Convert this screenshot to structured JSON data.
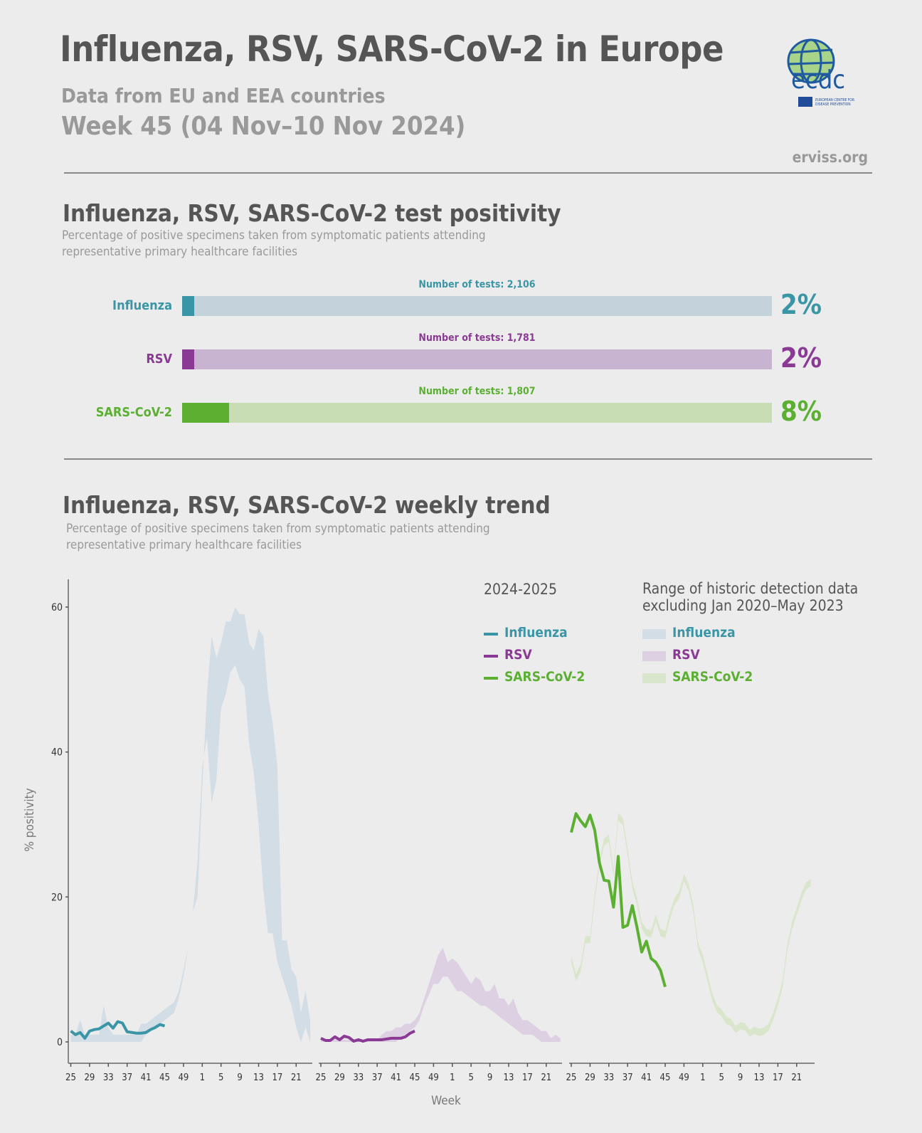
{
  "header": {
    "title": "Influenza, RSV, SARS-CoV-2 in Europe",
    "subtitle": "Data from EU and EEA countries",
    "week": "Week 45 (04 Nov–10 Nov 2024)",
    "site": "erviss.org",
    "logo_text": "ecdc",
    "logo_caption": "EUROPEAN CENTRE FOR DISEASE PREVENTION AND CONTROL"
  },
  "colors": {
    "influenza": "#3a96a6",
    "influenza_light": "#c3d2db",
    "influenza_range": "#d2dde5",
    "rsv": "#8a3a94",
    "rsv_light": "#c8b3d1",
    "rsv_range": "#ddd0e3",
    "sars": "#5bb031",
    "sars_light": "#c8ddb3",
    "sars_range": "#d9e6cb"
  },
  "positivity": {
    "title": "Influenza, RSV, SARS-CoV-2 test positivity",
    "description": "Percentage of positive specimens taken from symptomatic patients attending representative primary healthcare facilities",
    "bars": [
      {
        "label": "Influenza",
        "tests_label": "Number of tests: 2,106",
        "percent": 2,
        "percent_label": "2%"
      },
      {
        "label": "RSV",
        "tests_label": "Number of tests: 1,781",
        "percent": 2,
        "percent_label": "2%"
      },
      {
        "label": "SARS-CoV-2",
        "tests_label": "Number of tests: 1,807",
        "percent": 8,
        "percent_label": "8%"
      }
    ]
  },
  "trend": {
    "title": "Influenza, RSV, SARS-CoV-2 weekly trend",
    "description": "Percentage of positive specimens taken from symptomatic patients attending representative primary healthcare facilities",
    "legend": {
      "season_title": "2024-2025",
      "range_title_1": "Range of historic detection data",
      "range_title_2": "excluding Jan 2020–May 2023",
      "items": [
        "Influenza",
        "RSV",
        "SARS-CoV-2"
      ]
    }
  },
  "chart_data": {
    "type": "line",
    "ylabel": "% positivity",
    "xlabel": "Week",
    "ylim": [
      0,
      60
    ],
    "yticks": [
      0,
      20,
      40,
      60
    ],
    "weeks": [
      25,
      26,
      27,
      28,
      29,
      30,
      31,
      32,
      33,
      34,
      35,
      36,
      37,
      38,
      39,
      40,
      41,
      42,
      43,
      44,
      45,
      46,
      47,
      48,
      49,
      50,
      51,
      52,
      1,
      2,
      3,
      4,
      5,
      6,
      7,
      8,
      9,
      10,
      11,
      12,
      13,
      14,
      15,
      16,
      17,
      18,
      19,
      20,
      21,
      22,
      23,
      24
    ],
    "xtick_labels": [
      "25",
      "29",
      "33",
      "37",
      "41",
      "45",
      "49",
      "1",
      "5",
      "9",
      "13",
      "17",
      "21"
    ],
    "panels": [
      {
        "name": "Influenza",
        "season_2024_2025": [
          1.5,
          1.0,
          1.3,
          0.5,
          1.5,
          1.7,
          1.8,
          2.2,
          2.6,
          1.9,
          2.8,
          2.6,
          1.4,
          1.3,
          1.2,
          1.2,
          1.3,
          1.7,
          2.0,
          2.4,
          2.2
        ],
        "historic_lower": [
          0,
          0,
          0,
          0,
          0,
          0,
          0,
          0,
          0,
          0,
          0,
          0,
          0,
          0,
          0,
          0,
          1,
          1.5,
          2,
          2.5,
          3,
          3.5,
          4,
          6,
          9,
          13,
          18,
          25,
          38,
          42,
          33,
          36,
          46,
          48,
          51,
          52,
          50,
          49,
          41,
          37,
          30,
          21,
          15,
          15,
          11,
          9,
          7,
          5,
          2,
          0,
          2,
          0
        ],
        "historic_upper": [
          1,
          1,
          3,
          1,
          1,
          1,
          1,
          5,
          2,
          1,
          1,
          1,
          1,
          1,
          1,
          2.5,
          2.5,
          3,
          3.5,
          4,
          4.5,
          5,
          5.5,
          7,
          10,
          13,
          18,
          20,
          35,
          48,
          56,
          53,
          55,
          58,
          58,
          60,
          59,
          59,
          55,
          54,
          57,
          56,
          48,
          44,
          38,
          14,
          14,
          10,
          9,
          4,
          7,
          3
        ]
      },
      {
        "name": "RSV",
        "season_2024_2025": [
          0.5,
          0.2,
          0.2,
          0.7,
          0.3,
          0.8,
          0.6,
          0.1,
          0.3,
          0.1,
          0.3,
          0.3,
          0.3,
          0.3,
          0.4,
          0.5,
          0.5,
          0.5,
          0.7,
          1.2,
          1.5
        ],
        "historic_lower": [
          0,
          0,
          0,
          0,
          0,
          0,
          0,
          0,
          0,
          0,
          0,
          0,
          0,
          0,
          0,
          0,
          0,
          0.5,
          1,
          1.5,
          2,
          3,
          5,
          6.5,
          8,
          8,
          9,
          9,
          8,
          7,
          7,
          6.5,
          6,
          5.5,
          5,
          5,
          4.5,
          4,
          3.5,
          3,
          2.5,
          2,
          1.5,
          1,
          1,
          1,
          0.5,
          0,
          0,
          0,
          0,
          0
        ],
        "historic_upper": [
          0.3,
          0.3,
          0.3,
          0.3,
          0.3,
          0.3,
          0.3,
          0.3,
          0.3,
          0.3,
          0.3,
          0.3,
          0.3,
          1,
          1.5,
          1.5,
          2,
          2,
          2.5,
          2.5,
          3,
          4,
          6,
          8,
          10,
          12,
          13,
          11,
          11.5,
          11,
          10,
          9,
          8,
          9,
          8.5,
          7,
          7,
          8,
          6,
          6,
          5,
          6,
          4,
          3,
          3,
          2.5,
          2,
          1.5,
          1.5,
          0.5,
          1,
          0.5
        ]
      },
      {
        "name": "SARS-CoV-2",
        "season_2024_2025": [
          28.9,
          31.5,
          30.5,
          29.7,
          31.3,
          29.2,
          24.7,
          22.3,
          22.2,
          18.6,
          25.6,
          15.8,
          16.1,
          18.8,
          15.8,
          12.4,
          13.9,
          11.5,
          11.0,
          9.9,
          7.6
        ],
        "historic_lower": [
          10.9,
          8.4,
          9.7,
          13.6,
          13.6,
          19.5,
          24.2,
          27.1,
          27.6,
          22.8,
          30.6,
          29.9,
          25.7,
          21.2,
          18.9,
          15.6,
          14.6,
          14.4,
          16.6,
          14.6,
          14.3,
          16.9,
          18.9,
          19.8,
          22.2,
          20.8,
          17.9,
          12.7,
          11,
          8.4,
          5.8,
          4.1,
          3.5,
          2.5,
          2.2,
          1.2,
          1.7,
          1.6,
          0.7,
          1.1,
          0.8,
          1,
          1.5,
          3,
          5,
          7.5,
          12.5,
          15.5,
          17.5,
          19.5,
          21,
          21.5
        ],
        "historic_upper": [
          11.9,
          9.4,
          10.7,
          14.6,
          14.6,
          20.5,
          25.2,
          28.1,
          28.6,
          23.8,
          31.6,
          30.9,
          26.7,
          22.2,
          19.9,
          16.6,
          15.6,
          15.4,
          17.6,
          15.6,
          15.3,
          17.9,
          19.9,
          20.8,
          23.2,
          21.8,
          18.9,
          13.7,
          12,
          9.4,
          6.8,
          5.1,
          4.5,
          3.5,
          3.2,
          2.2,
          2.7,
          2.6,
          1.7,
          2.1,
          1.8,
          2,
          2.5,
          4,
          6,
          8.5,
          13.5,
          16.5,
          18.5,
          20.5,
          22,
          22.5
        ]
      }
    ]
  }
}
